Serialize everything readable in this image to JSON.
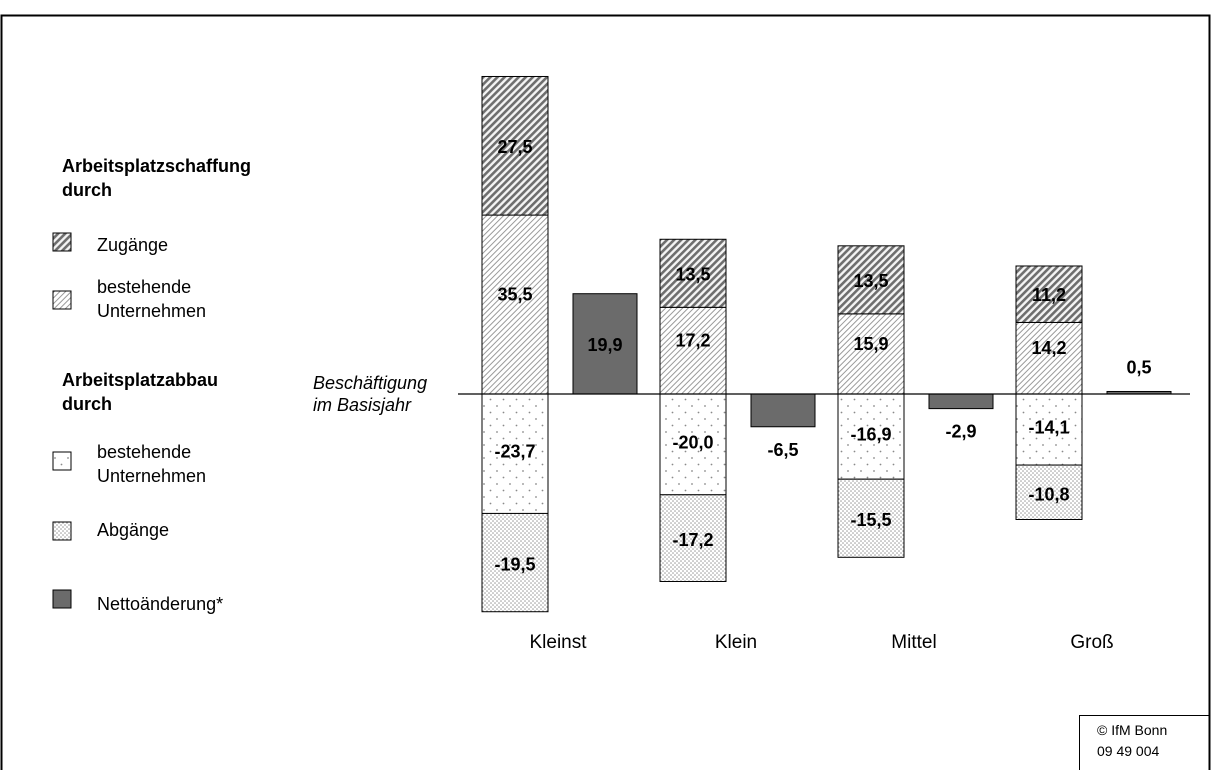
{
  "chart_data": {
    "type": "bar",
    "categories": [
      "Kleinst",
      "Klein",
      "Mittel",
      "Groß"
    ],
    "series": [
      {
        "name": "Zugänge",
        "group": "creation",
        "values": [
          27.5,
          13.5,
          13.5,
          11.2
        ],
        "labels": [
          "27,5",
          "13,5",
          "13,5",
          "11,2"
        ]
      },
      {
        "name": "bestehende Unternehmen",
        "group": "creation",
        "values": [
          35.5,
          17.2,
          15.9,
          14.2
        ],
        "labels": [
          "35,5",
          "17,2",
          "15,9",
          "14,2"
        ]
      },
      {
        "name": "bestehende Unternehmen",
        "group": "reduction",
        "values": [
          -23.7,
          -20.0,
          -16.9,
          -14.1
        ],
        "labels": [
          "-23,7",
          "-20,0",
          "-16,9",
          "-14,1"
        ]
      },
      {
        "name": "Abgänge",
        "group": "reduction",
        "values": [
          -19.5,
          -17.2,
          -15.5,
          -10.8
        ],
        "labels": [
          "-19,5",
          "-17,2",
          "-15,5",
          "-10,8"
        ]
      },
      {
        "name": "Nettoänderung*",
        "group": "net",
        "values": [
          19.9,
          -6.5,
          -2.9,
          0.5
        ],
        "labels": [
          "19,9",
          "-6,5",
          "-2,9",
          "0,5"
        ]
      }
    ],
    "baseline_label": [
      "Beschäftigung",
      "im Basisjahr"
    ],
    "legend": {
      "placement": "left",
      "creation_heading": [
        "Arbeitsplatzschaffung",
        "durch"
      ],
      "reduction_heading": [
        "Arbeitsplatzabbau",
        "durch"
      ],
      "items": [
        {
          "lines": [
            "Zugänge"
          ],
          "pattern": "hatch-dense"
        },
        {
          "lines": [
            "bestehende",
            "Unternehmen"
          ],
          "pattern": "hatch-light"
        },
        {
          "lines": [
            "bestehende",
            "Unternehmen"
          ],
          "pattern": "dots-sparse"
        },
        {
          "lines": [
            "Abgänge"
          ],
          "pattern": "dots-dense"
        },
        {
          "lines": [
            "Nettoänderung*"
          ],
          "pattern": "solid-gray"
        }
      ]
    },
    "colors": {
      "net": "#6b6b6b",
      "hatch_dense": "#6e6e6e",
      "hatch_light": "#9a9a9a",
      "dots": "#9a9a9a"
    },
    "ylim": [
      -50,
      72
    ],
    "grid": false
  },
  "copyright": [
    "© IfM Bonn",
    "09 49 004"
  ]
}
